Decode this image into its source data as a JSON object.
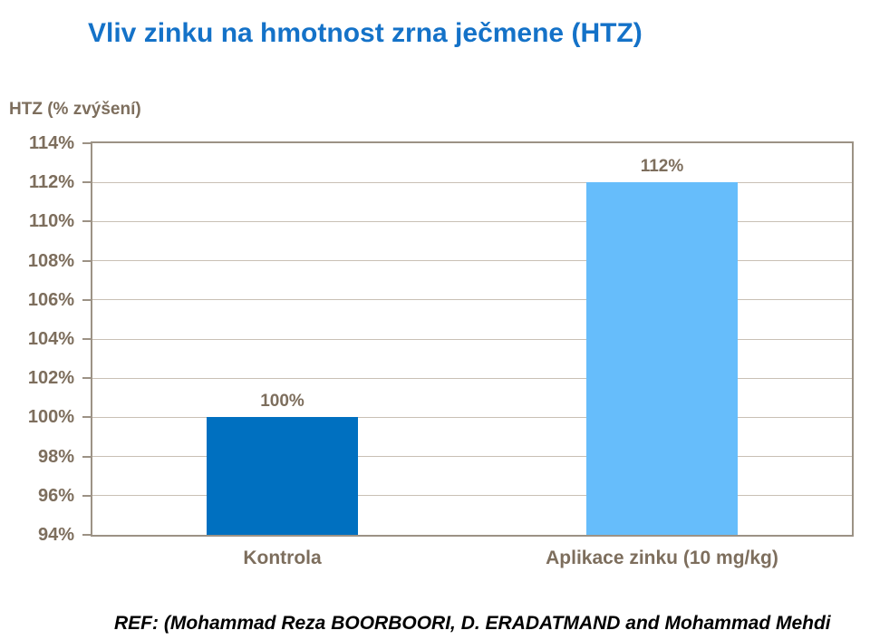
{
  "slide": {
    "title": "Vliv zinku na hmotnost zrna ječmene (HTZ)",
    "footer_ref": "REF: (Mohammad Reza BOORBOORI,  D. ERADATMAND  and Mohammad Mehdi"
  },
  "colors": {
    "title_text": "#1472C8",
    "axis_text": "#7D6E5D",
    "plot_border": "#9C9285",
    "gridline": "#C9C0B5",
    "footer_text": "#000000"
  },
  "chart_data": {
    "type": "bar",
    "title": "Vliv zinku na hmotnost zrna ječmene (HTZ)",
    "ylabel": "HTZ (% zvýšení)",
    "xlabel": "",
    "categories": [
      "Kontrola",
      "Aplikace zinku (10 mg/kg)"
    ],
    "values": [
      100,
      112
    ],
    "data_labels": [
      "100%",
      "112%"
    ],
    "bar_colors": [
      "#0070C0",
      "#66BDFB"
    ],
    "ylim": [
      94,
      114
    ],
    "ytick_step": 2,
    "ytick_labels": [
      "94%",
      "96%",
      "98%",
      "100%",
      "102%",
      "104%",
      "106%",
      "108%",
      "110%",
      "112%",
      "114%"
    ],
    "grid": "horizontal",
    "legend": "none"
  }
}
